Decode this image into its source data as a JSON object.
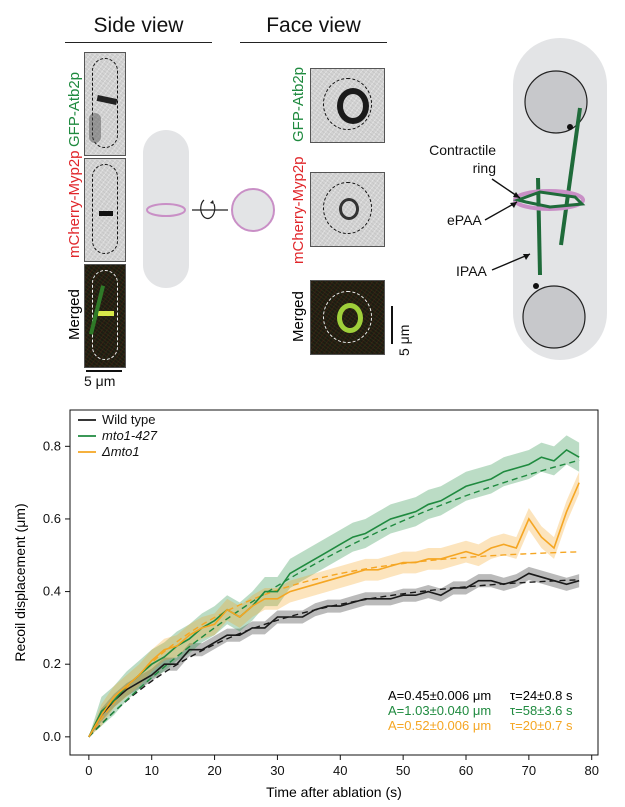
{
  "figure_top": {
    "side_view": {
      "title": "Side view",
      "channel_labels": [
        "GFP-Atb2p",
        "mCherry-Myp2p",
        "Merged"
      ],
      "scale_bar": "5 μm"
    },
    "face_view": {
      "title": "Face view",
      "channel_labels": [
        "GFP-Atb2p",
        "mCherry-Myp2p",
        "Merged"
      ],
      "scale_bar": "5 μm"
    },
    "schematic_labels": {
      "contractile_ring": "Contractile ring",
      "epaa": "ePAA",
      "ipaa": "IPAA"
    },
    "colors": {
      "green": "#1f8a3f",
      "red": "#e0262a",
      "ring": "#c98fc6",
      "cell": "#e3e4e6"
    }
  },
  "chart_data": {
    "type": "line",
    "xlabel": "Time after ablation (s)",
    "ylabel": "Recoil displacement (μm)",
    "xlim": [
      -3,
      81
    ],
    "ylim": [
      -0.05,
      0.9
    ],
    "xticks": [
      0,
      10,
      20,
      30,
      40,
      50,
      60,
      70,
      80
    ],
    "yticks": [
      0.0,
      0.2,
      0.4,
      0.6,
      0.8
    ],
    "xtick_labels": [
      "0",
      "10",
      "20",
      "30",
      "40",
      "50",
      "60",
      "70",
      "80"
    ],
    "ytick_labels": [
      "0.0",
      "0.2",
      "0.4",
      "0.6",
      "0.8"
    ],
    "grid": false,
    "legend_position": "top-left",
    "series": [
      {
        "name": "Wild type",
        "color": "#1a1a1a",
        "fit": {
          "A": 0.45,
          "tau": 24
        },
        "x": [
          0,
          2,
          4,
          6,
          8,
          10,
          12,
          14,
          16,
          18,
          20,
          22,
          24,
          26,
          28,
          30,
          32,
          34,
          36,
          38,
          40,
          42,
          44,
          46,
          48,
          50,
          52,
          54,
          56,
          58,
          60,
          62,
          64,
          66,
          68,
          70,
          72,
          74,
          76,
          78
        ],
        "values": [
          0.0,
          0.06,
          0.1,
          0.13,
          0.15,
          0.17,
          0.2,
          0.2,
          0.24,
          0.24,
          0.26,
          0.28,
          0.28,
          0.3,
          0.3,
          0.33,
          0.33,
          0.33,
          0.35,
          0.36,
          0.36,
          0.37,
          0.38,
          0.38,
          0.38,
          0.39,
          0.39,
          0.4,
          0.39,
          0.41,
          0.41,
          0.43,
          0.43,
          0.42,
          0.43,
          0.45,
          0.44,
          0.43,
          0.42,
          0.43
        ],
        "band": 0.018
      },
      {
        "name": "mto1-427",
        "color": "#1f8a3f",
        "fit": {
          "A": 1.03,
          "tau": 58
        },
        "x": [
          0,
          2,
          4,
          6,
          8,
          10,
          12,
          14,
          16,
          18,
          20,
          22,
          24,
          26,
          28,
          30,
          32,
          34,
          36,
          38,
          40,
          42,
          44,
          46,
          48,
          50,
          52,
          54,
          56,
          58,
          60,
          62,
          64,
          66,
          68,
          70,
          72,
          74,
          76,
          78
        ],
        "values": [
          0.0,
          0.07,
          0.1,
          0.14,
          0.17,
          0.2,
          0.22,
          0.25,
          0.27,
          0.3,
          0.32,
          0.35,
          0.33,
          0.36,
          0.4,
          0.4,
          0.45,
          0.47,
          0.49,
          0.51,
          0.53,
          0.55,
          0.56,
          0.58,
          0.6,
          0.61,
          0.62,
          0.64,
          0.65,
          0.67,
          0.69,
          0.7,
          0.71,
          0.73,
          0.74,
          0.75,
          0.77,
          0.76,
          0.79,
          0.77
        ],
        "band": 0.04
      },
      {
        "name": "Δmto1",
        "color": "#f5a623",
        "fit": {
          "A": 0.52,
          "tau": 20
        },
        "x": [
          0,
          2,
          4,
          6,
          8,
          10,
          12,
          14,
          16,
          18,
          20,
          22,
          24,
          26,
          28,
          30,
          32,
          34,
          36,
          38,
          40,
          42,
          44,
          46,
          48,
          50,
          52,
          54,
          56,
          58,
          60,
          62,
          64,
          66,
          68,
          70,
          72,
          74,
          76,
          78
        ],
        "values": [
          0.0,
          0.06,
          0.11,
          0.14,
          0.17,
          0.21,
          0.24,
          0.25,
          0.28,
          0.3,
          0.31,
          0.35,
          0.33,
          0.36,
          0.38,
          0.38,
          0.4,
          0.41,
          0.42,
          0.43,
          0.44,
          0.45,
          0.46,
          0.46,
          0.47,
          0.48,
          0.48,
          0.49,
          0.49,
          0.5,
          0.51,
          0.5,
          0.52,
          0.53,
          0.52,
          0.6,
          0.55,
          0.52,
          0.62,
          0.7
        ],
        "band": 0.03
      }
    ],
    "legend": [
      "Wild type",
      "mto1-427",
      "Δmto1"
    ],
    "annotations": [
      {
        "A": "A=0.45±0.006 μm",
        "tau": "τ=24±0.8 s",
        "color": "#000000"
      },
      {
        "A": "A=1.03±0.040 μm",
        "tau": "τ=58±3.6 s",
        "color": "#1f8a3f"
      },
      {
        "A": "A=0.52±0.006 μm",
        "tau": "τ=20±0.7 s",
        "color": "#f5a623"
      }
    ]
  }
}
